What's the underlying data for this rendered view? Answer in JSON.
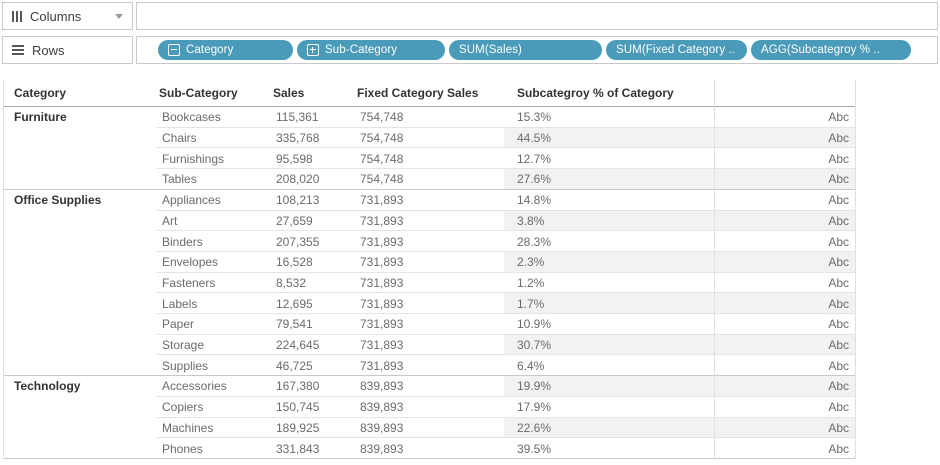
{
  "shelves": {
    "columns": {
      "label": "Columns"
    },
    "rows": {
      "label": "Rows"
    },
    "pills": [
      {
        "label": "Category",
        "toggle": "collapse"
      },
      {
        "label": "Sub-Category",
        "toggle": "expand"
      },
      {
        "label": "SUM(Sales)",
        "toggle": null
      },
      {
        "label": "SUM(Fixed Category ..",
        "toggle": null
      },
      {
        "label": "AGG(Subcategroy % ..",
        "toggle": null
      }
    ]
  },
  "colors": {
    "pill": "#4A9BB9",
    "band": "#f2f2f2",
    "border": "#c9c9c9"
  },
  "table": {
    "headers": {
      "category": "Category",
      "subcategory": "Sub-Category",
      "sales": "Sales",
      "fixed": "Fixed Category Sales",
      "pct": "Subcategroy % of Category"
    },
    "pane_text": "Abc",
    "groups": [
      {
        "category": "Furniture",
        "rows": [
          {
            "subcategory": "Bookcases",
            "sales": "115,361",
            "fixed": "754,748",
            "pct": "15.3%"
          },
          {
            "subcategory": "Chairs",
            "sales": "335,768",
            "fixed": "754,748",
            "pct": "44.5%"
          },
          {
            "subcategory": "Furnishings",
            "sales": "95,598",
            "fixed": "754,748",
            "pct": "12.7%"
          },
          {
            "subcategory": "Tables",
            "sales": "208,020",
            "fixed": "754,748",
            "pct": "27.6%"
          }
        ]
      },
      {
        "category": "Office Supplies",
        "rows": [
          {
            "subcategory": "Appliances",
            "sales": "108,213",
            "fixed": "731,893",
            "pct": "14.8%"
          },
          {
            "subcategory": "Art",
            "sales": "27,659",
            "fixed": "731,893",
            "pct": "3.8%"
          },
          {
            "subcategory": "Binders",
            "sales": "207,355",
            "fixed": "731,893",
            "pct": "28.3%"
          },
          {
            "subcategory": "Envelopes",
            "sales": "16,528",
            "fixed": "731,893",
            "pct": "2.3%"
          },
          {
            "subcategory": "Fasteners",
            "sales": "8,532",
            "fixed": "731,893",
            "pct": "1.2%"
          },
          {
            "subcategory": "Labels",
            "sales": "12,695",
            "fixed": "731,893",
            "pct": "1.7%"
          },
          {
            "subcategory": "Paper",
            "sales": "79,541",
            "fixed": "731,893",
            "pct": "10.9%"
          },
          {
            "subcategory": "Storage",
            "sales": "224,645",
            "fixed": "731,893",
            "pct": "30.7%"
          },
          {
            "subcategory": "Supplies",
            "sales": "46,725",
            "fixed": "731,893",
            "pct": "6.4%"
          }
        ]
      },
      {
        "category": "Technology",
        "rows": [
          {
            "subcategory": "Accessories",
            "sales": "167,380",
            "fixed": "839,893",
            "pct": "19.9%"
          },
          {
            "subcategory": "Copiers",
            "sales": "150,745",
            "fixed": "839,893",
            "pct": "17.9%"
          },
          {
            "subcategory": "Machines",
            "sales": "189,925",
            "fixed": "839,893",
            "pct": "22.6%"
          },
          {
            "subcategory": "Phones",
            "sales": "331,843",
            "fixed": "839,893",
            "pct": "39.5%"
          }
        ]
      }
    ]
  }
}
